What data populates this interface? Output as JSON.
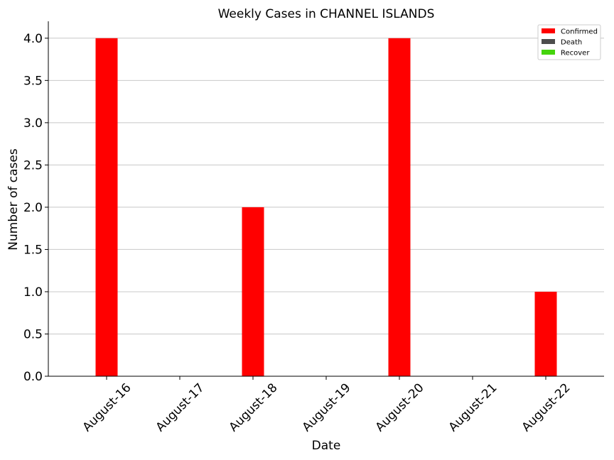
{
  "chart_data": {
    "type": "bar",
    "title": "Weekly Cases in CHANNEL ISLANDS",
    "xlabel": "Date",
    "ylabel": "Number of cases",
    "categories": [
      "August-16",
      "August-17",
      "August-18",
      "August-19",
      "August-20",
      "August-21",
      "August-22"
    ],
    "series": [
      {
        "name": "Confirmed",
        "color": "#ff0000",
        "values": [
          4,
          0,
          2,
          0,
          4,
          0,
          1
        ]
      },
      {
        "name": "Death",
        "color": "#4d4d4d",
        "values": [
          0,
          0,
          0,
          0,
          0,
          0,
          0
        ]
      },
      {
        "name": "Recover",
        "color": "#44d40c",
        "values": [
          0,
          0,
          0,
          0,
          0,
          0,
          0
        ]
      }
    ],
    "ylim": [
      0,
      4.2
    ],
    "yticks": [
      "0.0",
      "0.5",
      "1.0",
      "1.5",
      "2.0",
      "2.5",
      "3.0",
      "3.5",
      "4.0"
    ],
    "grid": "horizontal",
    "legend_position": "top-right",
    "x_tick_rotation": 45
  }
}
